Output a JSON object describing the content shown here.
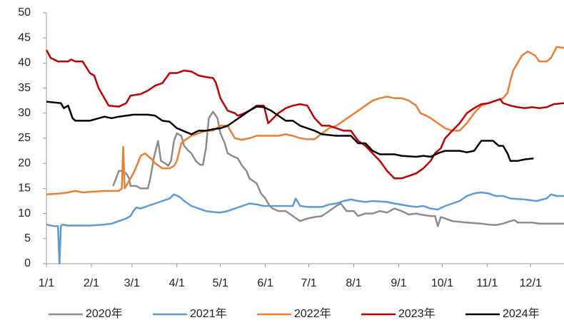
{
  "chart_data": {
    "type": "line",
    "xlim": [
      0,
      357
    ],
    "ylim": [
      0,
      50
    ],
    "yticks": [
      0,
      5,
      10,
      15,
      20,
      25,
      30,
      35,
      40,
      45,
      50
    ],
    "xticks": [
      {
        "value": 0,
        "label": "1/1"
      },
      {
        "value": 31,
        "label": "2/1"
      },
      {
        "value": 59,
        "label": "3/1"
      },
      {
        "value": 90,
        "label": "4/1"
      },
      {
        "value": 120,
        "label": "5/1"
      },
      {
        "value": 151,
        "label": "6/1"
      },
      {
        "value": 181,
        "label": "7/1"
      },
      {
        "value": 212,
        "label": "8/1"
      },
      {
        "value": 243,
        "label": "9/1"
      },
      {
        "value": 273,
        "label": "10/1"
      },
      {
        "value": 304,
        "label": "11/1"
      },
      {
        "value": 334,
        "label": "12/1"
      }
    ],
    "grid": false,
    "legend": "bottom",
    "series": [
      {
        "name": "2020年",
        "color": "#8c8c8c",
        "x": [
          46,
          48,
          50,
          52,
          55,
          57,
          58,
          62,
          65,
          70,
          72,
          74,
          77,
          79,
          82,
          84,
          86,
          88,
          90,
          93,
          95,
          98,
          100,
          103,
          106,
          108,
          110,
          112,
          115,
          118,
          120,
          123,
          125,
          128,
          132,
          135,
          138,
          140,
          145,
          148,
          151,
          154,
          156,
          160,
          165,
          170,
          175,
          180,
          185,
          190,
          195,
          200,
          203,
          207,
          212,
          215,
          220,
          225,
          230,
          235,
          240,
          245,
          250,
          255,
          260,
          265,
          268,
          270,
          272,
          275,
          280,
          290,
          300,
          305,
          310,
          315,
          320,
          323,
          325,
          335,
          340,
          357
        ],
        "values": [
          15.5,
          17,
          18.5,
          18.5,
          18,
          17,
          15.5,
          15.5,
          15,
          15,
          17.5,
          21,
          24.5,
          20.5,
          20,
          19.5,
          20.5,
          24.5,
          26,
          25.5,
          23.5,
          22.5,
          22,
          20.5,
          19.7,
          19.7,
          23,
          29,
          30.3,
          29,
          26,
          24,
          22,
          21.5,
          21,
          19.5,
          18.5,
          17,
          16,
          14,
          13,
          11.5,
          11,
          10.5,
          10.5,
          9.5,
          8.5,
          9,
          9.3,
          9.5,
          10.5,
          11.5,
          12,
          10.5,
          10.5,
          9.5,
          10,
          10,
          10.5,
          10.2,
          11,
          10.5,
          9.8,
          10,
          9.7,
          9.5,
          9.5,
          7.5,
          9.3,
          9,
          8.5,
          8.2,
          8,
          7.8,
          7.7,
          8,
          8.5,
          8.7,
          8.2,
          8.2,
          8,
          8
        ]
      },
      {
        "name": "2021年",
        "color": "#5b9bd5",
        "x": [
          0,
          5,
          8,
          9,
          10,
          11,
          15,
          20,
          30,
          40,
          45,
          50,
          55,
          58,
          60,
          62,
          65,
          70,
          75,
          80,
          85,
          88,
          92,
          95,
          100,
          105,
          110,
          115,
          120,
          125,
          130,
          135,
          140,
          145,
          150,
          160,
          165,
          170,
          172,
          175,
          180,
          190,
          195,
          200,
          205,
          210,
          215,
          220,
          225,
          235,
          240,
          250,
          255,
          260,
          265,
          270,
          275,
          280,
          285,
          290,
          295,
          300,
          305,
          310,
          315,
          320,
          330,
          338,
          345,
          348,
          352,
          357
        ],
        "values": [
          7.8,
          7.5,
          7.5,
          0,
          7.5,
          7.8,
          7.6,
          7.6,
          7.6,
          7.8,
          8,
          8.5,
          9,
          9.5,
          10.5,
          11.2,
          11,
          11.5,
          12,
          12.5,
          13,
          13.8,
          13.3,
          12.5,
          11.5,
          11,
          10.5,
          10.3,
          10.2,
          10.5,
          11,
          11.5,
          12,
          11.8,
          11.5,
          11.5,
          11.5,
          11.5,
          13,
          11.5,
          11.3,
          11.3,
          11.8,
          12,
          12.5,
          12.8,
          12.5,
          12.3,
          12.5,
          12.3,
          12,
          11.5,
          11.3,
          11.5,
          11,
          10.8,
          11.5,
          12,
          12.5,
          13.5,
          14,
          14.2,
          14,
          13.5,
          13.5,
          13,
          12.8,
          12.5,
          13,
          13.8,
          13.5,
          13.5
        ]
      },
      {
        "name": "2022年",
        "color": "#ed7d31",
        "x": [
          0,
          10,
          15,
          20,
          25,
          30,
          40,
          50,
          52,
          53,
          54,
          57,
          60,
          63,
          65,
          68,
          72,
          75,
          80,
          85,
          88,
          90,
          93,
          95,
          100,
          105,
          110,
          115,
          120,
          125,
          128,
          130,
          135,
          140,
          145,
          150,
          160,
          165,
          170,
          175,
          180,
          185,
          190,
          195,
          200,
          205,
          210,
          215,
          220,
          225,
          230,
          235,
          240,
          245,
          250,
          255,
          258,
          262,
          265,
          270,
          275,
          280,
          285,
          290,
          295,
          300,
          305,
          310,
          315,
          318,
          320,
          322,
          325,
          328,
          332,
          337,
          340,
          345,
          348,
          352,
          357
        ],
        "values": [
          13.8,
          14,
          14.2,
          14.5,
          14.2,
          14.3,
          14.5,
          14.5,
          15,
          23.3,
          15,
          16.5,
          18,
          20,
          21.5,
          22,
          21,
          20,
          19,
          19,
          19.5,
          20.5,
          24,
          24.5,
          25.5,
          26,
          26.5,
          26.5,
          27.5,
          27.5,
          26,
          25,
          24.7,
          25,
          25.5,
          25.5,
          25.5,
          25.8,
          25.5,
          25,
          24.8,
          24.8,
          26,
          27,
          27.5,
          28.5,
          29.5,
          30.5,
          31.5,
          32.5,
          33,
          33.3,
          33,
          33,
          32.5,
          31.5,
          30,
          29.5,
          29,
          28,
          27,
          26.5,
          26.5,
          28,
          30,
          31.5,
          32,
          32.5,
          33,
          34,
          36.5,
          38.5,
          40,
          41.5,
          42.3,
          41.5,
          40.3,
          40.3,
          41,
          43.2,
          43
        ]
      },
      {
        "name": "2023年",
        "color": "#c00000",
        "x": [
          0,
          3,
          8,
          15,
          17,
          20,
          25,
          30,
          33,
          36,
          40,
          43,
          50,
          55,
          58,
          65,
          70,
          75,
          80,
          85,
          90,
          95,
          100,
          105,
          110,
          115,
          117,
          120,
          125,
          130,
          132,
          135,
          140,
          145,
          150,
          153,
          160,
          165,
          170,
          175,
          180,
          185,
          190,
          195,
          200,
          205,
          210,
          215,
          220,
          225,
          230,
          235,
          240,
          245,
          250,
          255,
          260,
          265,
          268,
          272,
          275,
          280,
          285,
          290,
          295,
          300,
          305,
          310,
          313,
          315,
          320,
          325,
          330,
          335,
          340,
          345,
          350,
          357
        ],
        "values": [
          42.6,
          41,
          40.3,
          40.3,
          40.7,
          40.3,
          40.3,
          38,
          37.5,
          35,
          33,
          31.5,
          31.3,
          32,
          33.5,
          33.8,
          34.5,
          35.5,
          36,
          38,
          38,
          38.5,
          38.3,
          37.5,
          37.2,
          37,
          36,
          33,
          30.5,
          30,
          29.5,
          29.8,
          30.5,
          31.5,
          31.5,
          28,
          30,
          31,
          31.5,
          31.8,
          31.5,
          29,
          27.5,
          27.5,
          27,
          26.5,
          26.5,
          24.5,
          23.5,
          22,
          20.5,
          18.5,
          17,
          17,
          17.5,
          18,
          19,
          20.5,
          22,
          23,
          25,
          26.5,
          28,
          30,
          31,
          31.8,
          32,
          32.5,
          32.8,
          32,
          31.5,
          31.2,
          31,
          31.2,
          31,
          31.2,
          31.8,
          32
        ]
      },
      {
        "name": "2024年",
        "color": "#000000",
        "x": [
          0,
          10,
          12,
          15,
          18,
          20,
          30,
          40,
          45,
          50,
          60,
          70,
          75,
          80,
          85,
          90,
          100,
          105,
          110,
          115,
          120,
          125,
          130,
          135,
          140,
          145,
          150,
          155,
          160,
          165,
          170,
          175,
          180,
          185,
          190,
          200,
          210,
          215,
          220,
          225,
          230,
          240,
          245,
          255,
          260,
          265,
          270,
          275,
          285,
          290,
          295,
          300,
          308,
          312,
          315,
          318,
          320,
          325,
          330,
          336
        ],
        "values": [
          32.3,
          32,
          31,
          31.5,
          29,
          28.5,
          28.5,
          29.3,
          29,
          29.3,
          29.7,
          29.7,
          29.5,
          28.5,
          28.3,
          27,
          25.8,
          26.5,
          26.5,
          26.8,
          27,
          27.5,
          28.5,
          29.5,
          30.5,
          31.3,
          31.2,
          30.5,
          29.5,
          28.5,
          28.5,
          27.5,
          27,
          26.5,
          25.8,
          25.5,
          25.5,
          24,
          24,
          22.5,
          21.8,
          21.8,
          21.5,
          21.3,
          21.5,
          21.3,
          22,
          22.5,
          22.5,
          22.2,
          22.5,
          24.5,
          24.5,
          23.5,
          23.5,
          22,
          20.5,
          20.5,
          20.8,
          21
        ]
      }
    ]
  }
}
